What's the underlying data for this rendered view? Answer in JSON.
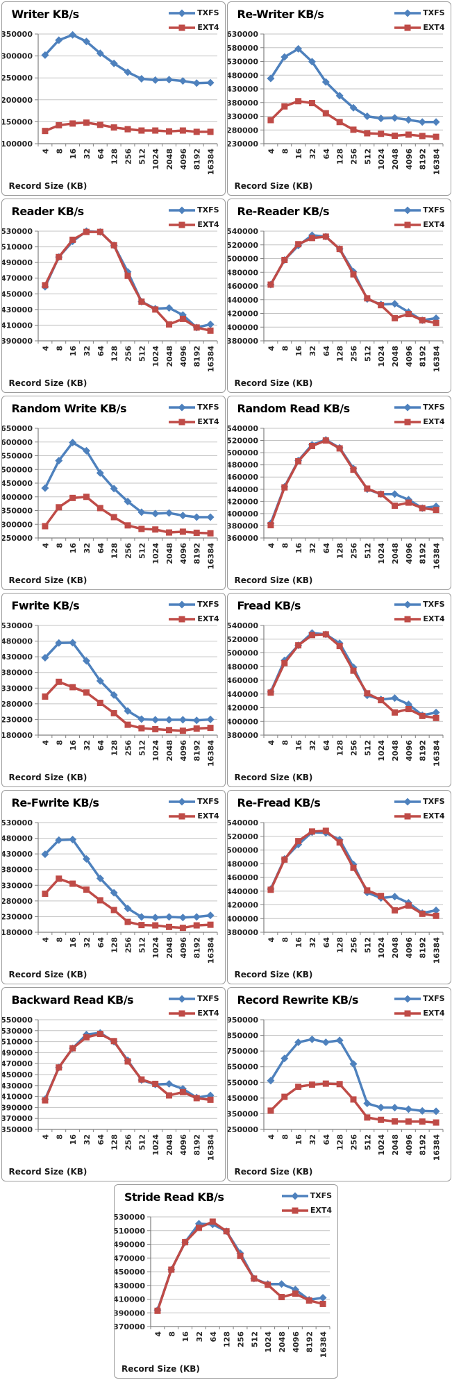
{
  "style": {
    "txfs_color": "#4e81bd",
    "ext4_color": "#bf4b47",
    "grid_color": "#c3c3c3",
    "axis_color": "#808080",
    "label_color": "#262626",
    "panel_border": "#9c9c9c"
  },
  "chart_data": {
    "type": "line",
    "xlabel": "Record Size (KB)",
    "categories": [
      "4",
      "8",
      "16",
      "32",
      "64",
      "128",
      "256",
      "512",
      "1024",
      "2048",
      "4096",
      "8192",
      "16384"
    ],
    "legend": [
      "TXFS",
      "EXT4"
    ],
    "legend_position": "top-right",
    "grid": true,
    "series_colors": {
      "TXFS": "#4e81bd",
      "EXT4": "#bf4b47"
    },
    "series_markers": {
      "TXFS": "diamond",
      "EXT4": "square"
    },
    "charts": [
      {
        "title": "Writer KB/s",
        "ylim": [
          100000,
          350000
        ],
        "ystep": 50000,
        "TXFS": [
          302000,
          336000,
          348000,
          333000,
          306000,
          283000,
          263000,
          248000,
          245000,
          246000,
          243000,
          238000,
          239000
        ],
        "EXT4": [
          129000,
          142000,
          146000,
          148000,
          143000,
          137000,
          133000,
          130000,
          130000,
          128000,
          130000,
          127000,
          127000
        ]
      },
      {
        "title": "Re-Writer KB/s",
        "ylim": [
          230000,
          630000
        ],
        "ystep": 50000,
        "TXFS": [
          468000,
          546000,
          576000,
          529000,
          455000,
          405000,
          361000,
          330000,
          322000,
          324000,
          317000,
          309000,
          309000
        ],
        "EXT4": [
          316000,
          366000,
          385000,
          378000,
          341000,
          309000,
          281000,
          268000,
          266000,
          259000,
          263000,
          258000,
          255000
        ]
      },
      {
        "title": "Reader KB/s",
        "ylim": [
          390000,
          530000
        ],
        "ystep": 20000,
        "TXFS": [
          459000,
          497000,
          517000,
          530000,
          529000,
          512000,
          478000,
          440000,
          431000,
          432000,
          423000,
          407000,
          411000
        ],
        "EXT4": [
          461000,
          497000,
          519000,
          529000,
          529000,
          512000,
          473000,
          440000,
          430000,
          411000,
          418000,
          407000,
          403000
        ]
      },
      {
        "title": "Re-Reader KB/s",
        "ylim": [
          380000,
          540000
        ],
        "ystep": 20000,
        "TXFS": [
          462000,
          498000,
          519000,
          534000,
          532000,
          514000,
          481000,
          441000,
          433000,
          434000,
          422000,
          410000,
          413000
        ],
        "EXT4": [
          462000,
          498000,
          521000,
          530000,
          532000,
          514000,
          477000,
          442000,
          432000,
          413000,
          419000,
          410000,
          406000
        ]
      },
      {
        "title": "Random Write KB/s",
        "ylim": [
          250000,
          650000
        ],
        "ystep": 50000,
        "TXFS": [
          432000,
          532000,
          598000,
          568000,
          487000,
          430000,
          383000,
          344000,
          339000,
          341000,
          332000,
          326000,
          326000
        ],
        "EXT4": [
          293000,
          362000,
          396000,
          400000,
          359000,
          326000,
          296000,
          283000,
          281000,
          270000,
          273000,
          269000,
          267000
        ]
      },
      {
        "title": "Random Read KB/s",
        "ylim": [
          360000,
          540000
        ],
        "ystep": 20000,
        "TXFS": [
          384000,
          444000,
          487000,
          513000,
          521000,
          508000,
          474000,
          440000,
          432000,
          432000,
          423000,
          409000,
          412000
        ],
        "EXT4": [
          381000,
          443000,
          486000,
          511000,
          520000,
          507000,
          472000,
          441000,
          432000,
          413000,
          418000,
          409000,
          406000
        ]
      },
      {
        "title": "Fwrite KB/s",
        "ylim": [
          180000,
          530000
        ],
        "ystep": 50000,
        "TXFS": [
          427000,
          474000,
          475000,
          417000,
          353000,
          308000,
          257000,
          231000,
          229000,
          229000,
          229000,
          227000,
          230000
        ],
        "EXT4": [
          303000,
          350000,
          333000,
          316000,
          283000,
          250000,
          213000,
          202000,
          199000,
          196000,
          194000,
          201000,
          203000
        ]
      },
      {
        "title": "Fread KB/s",
        "ylim": [
          380000,
          540000
        ],
        "ystep": 20000,
        "TXFS": [
          443000,
          489000,
          511000,
          529000,
          527000,
          514000,
          479000,
          438000,
          432000,
          434000,
          425000,
          409000,
          413000
        ],
        "EXT4": [
          442000,
          485000,
          511000,
          526000,
          527000,
          510000,
          474000,
          441000,
          431000,
          413000,
          418000,
          408000,
          405000
        ]
      },
      {
        "title": "Re-Fwrite KB/s",
        "ylim": [
          180000,
          530000
        ],
        "ystep": 50000,
        "TXFS": [
          429000,
          474000,
          476000,
          414000,
          352000,
          306000,
          256000,
          229000,
          227000,
          229000,
          227000,
          229000,
          234000
        ],
        "EXT4": [
          303000,
          351000,
          335000,
          316000,
          282000,
          251000,
          213000,
          203000,
          202000,
          197000,
          194000,
          202000,
          204000
        ]
      },
      {
        "title": "Re-Fread KB/s",
        "ylim": [
          380000,
          540000
        ],
        "ystep": 20000,
        "TXFS": [
          443000,
          487000,
          508000,
          526000,
          525000,
          515000,
          479000,
          438000,
          430000,
          432000,
          423000,
          408000,
          412000
        ],
        "EXT4": [
          442000,
          486000,
          513000,
          527000,
          528000,
          511000,
          474000,
          441000,
          433000,
          412000,
          419000,
          407000,
          404000
        ]
      },
      {
        "title": "Backward Read KB/s",
        "ylim": [
          350000,
          550000
        ],
        "ystep": 20000,
        "TXFS": [
          405000,
          463000,
          498000,
          523000,
          526000,
          510000,
          476000,
          440000,
          432000,
          433000,
          424000,
          408000,
          412000
        ],
        "EXT4": [
          403000,
          463000,
          498000,
          518000,
          524000,
          511000,
          474000,
          441000,
          433000,
          412000,
          418000,
          407000,
          404000
        ]
      },
      {
        "title": "Record Rewrite KB/s",
        "ylim": [
          250000,
          950000
        ],
        "ystep": 100000,
        "TXFS": [
          561000,
          703000,
          806000,
          825000,
          806000,
          818000,
          668000,
          416000,
          390000,
          389000,
          379000,
          368000,
          366000
        ],
        "EXT4": [
          370000,
          458000,
          522000,
          536000,
          542000,
          539000,
          441000,
          326000,
          311000,
          301000,
          300000,
          300000,
          294000
        ]
      },
      {
        "title": "Stride Read KB/s",
        "ylim": [
          370000,
          530000
        ],
        "ystep": 20000,
        "TXFS": [
          394000,
          453000,
          493000,
          520000,
          519000,
          509000,
          477000,
          440000,
          432000,
          432000,
          424000,
          409000,
          412000
        ],
        "EXT4": [
          393000,
          453000,
          493000,
          514000,
          523000,
          509000,
          473000,
          440000,
          431000,
          413000,
          418000,
          408000,
          403000
        ]
      }
    ]
  }
}
